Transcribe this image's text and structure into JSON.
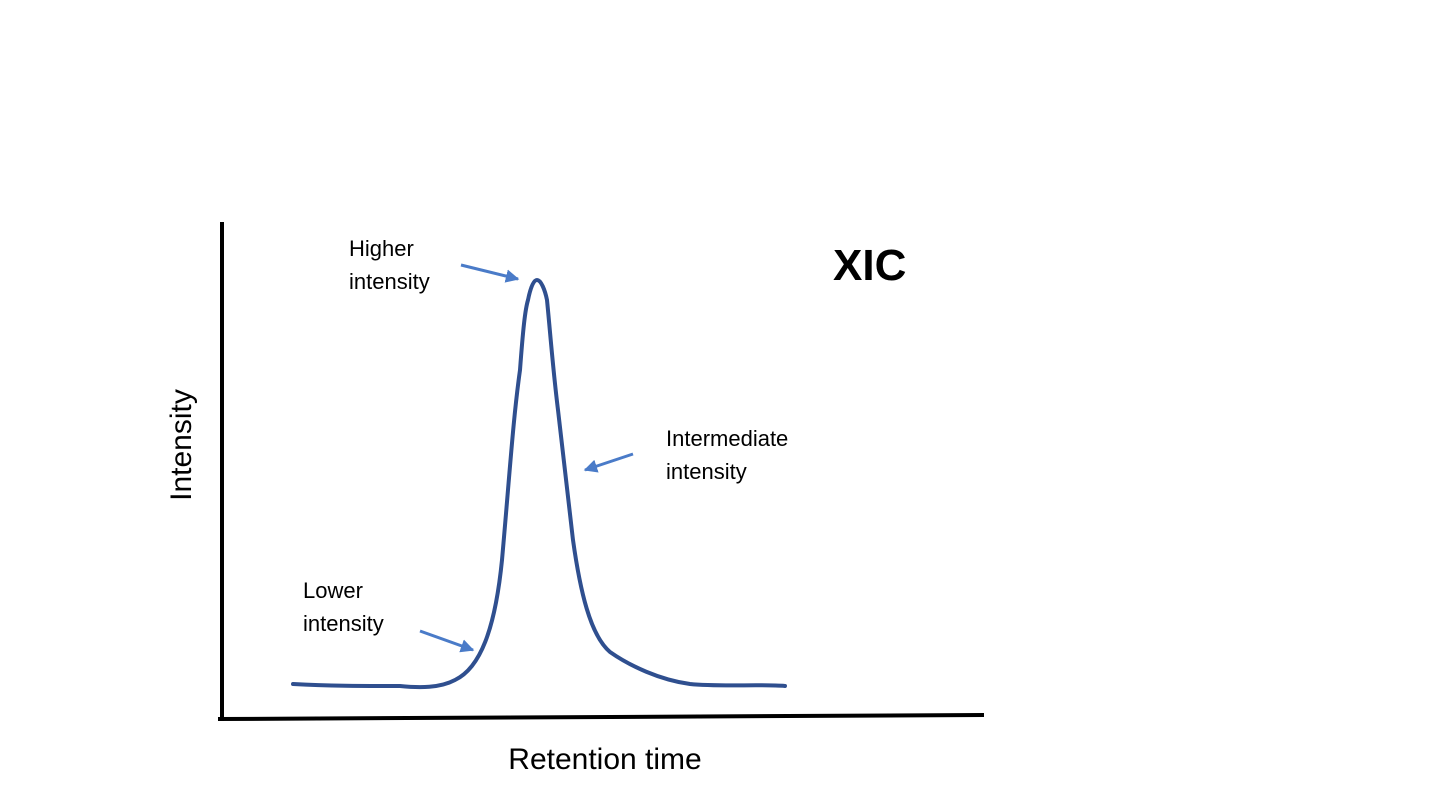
{
  "title": "XIC",
  "axes": {
    "x_label": "Retention time",
    "y_label": "Intensity"
  },
  "annotations": {
    "higher": {
      "line1": "Higher",
      "line2": "intensity"
    },
    "intermediate": {
      "line1": "Intermediate",
      "line2": "intensity"
    },
    "lower": {
      "line1": "Lower",
      "line2": "intensity"
    }
  },
  "colors": {
    "curve": "#2f4f8f",
    "arrow": "#4a7bc8",
    "axis": "#000000"
  }
}
